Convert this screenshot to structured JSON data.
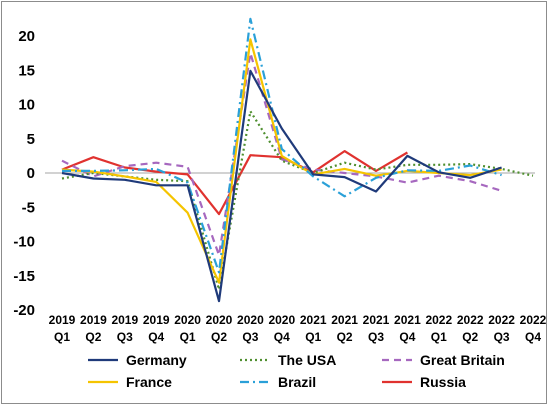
{
  "chart_data": {
    "type": "line",
    "title": "",
    "xlabel": "",
    "ylabel": "",
    "ylim": [
      -20,
      20
    ],
    "y_ticks": [
      -20,
      -15,
      -10,
      -5,
      0,
      5,
      10,
      15,
      20
    ],
    "grid": false,
    "legend_position": "bottom",
    "categories": [
      [
        "2019",
        "Q1"
      ],
      [
        "2019",
        "Q2"
      ],
      [
        "2019",
        "Q3"
      ],
      [
        "2019",
        "Q4"
      ],
      [
        "2020",
        "Q1"
      ],
      [
        "2020",
        "Q2"
      ],
      [
        "2020",
        "Q3"
      ],
      [
        "2020",
        "Q4"
      ],
      [
        "2021",
        "Q1"
      ],
      [
        "2021",
        "Q2"
      ],
      [
        "2021",
        "Q3"
      ],
      [
        "2021",
        "Q4"
      ],
      [
        "2022",
        "Q1"
      ],
      [
        "2022",
        "Q2"
      ],
      [
        "2022",
        "Q3"
      ],
      [
        "2022",
        "Q4"
      ]
    ],
    "series": [
      {
        "name": "Germany",
        "color": "#1f3a7a",
        "dash": "solid",
        "values": [
          0.0,
          -0.8,
          -1.0,
          -1.8,
          -1.8,
          -18.7,
          14.9,
          6.5,
          -0.2,
          -0.6,
          -2.7,
          2.5,
          0.1,
          -0.7,
          0.8,
          null
        ]
      },
      {
        "name": "The USA",
        "color": "#4f8f2f",
        "dash": "dotted",
        "values": [
          -0.8,
          0.0,
          -0.5,
          -1.0,
          -1.2,
          -17.0,
          9.0,
          1.8,
          0.0,
          1.5,
          0.5,
          1.2,
          1.2,
          1.3,
          0.6,
          -0.4
        ]
      },
      {
        "name": "Great Britain",
        "color": "#a668bf",
        "dash": "dashed",
        "values": [
          1.8,
          -0.5,
          1.0,
          1.5,
          0.9,
          -12.0,
          17.5,
          2.0,
          0.5,
          0.0,
          -0.5,
          -1.4,
          -0.4,
          -1.2,
          -2.6,
          null
        ]
      },
      {
        "name": "France",
        "color": "#f5c400",
        "dash": "solid",
        "values": [
          0.5,
          0.2,
          -0.5,
          -1.3,
          -5.8,
          -16.0,
          19.5,
          2.5,
          -0.2,
          0.6,
          -0.4,
          0.3,
          0.0,
          -0.3,
          0.5,
          null
        ]
      },
      {
        "name": "Brazil",
        "color": "#2aa0d8",
        "dash": "dashdot",
        "values": [
          0.3,
          0.3,
          0.4,
          0.6,
          -1.4,
          -14.5,
          22.5,
          3.5,
          -0.5,
          -3.4,
          -0.7,
          0.4,
          0.3,
          1.1,
          -0.3,
          null
        ]
      },
      {
        "name": "Russia",
        "color": "#e0322f",
        "dash": "solid",
        "values": [
          0.5,
          2.3,
          0.8,
          0.2,
          -0.2,
          -6.0,
          2.6,
          2.3,
          0.1,
          3.2,
          0.3,
          3.0,
          null,
          null,
          null,
          null
        ]
      }
    ]
  }
}
